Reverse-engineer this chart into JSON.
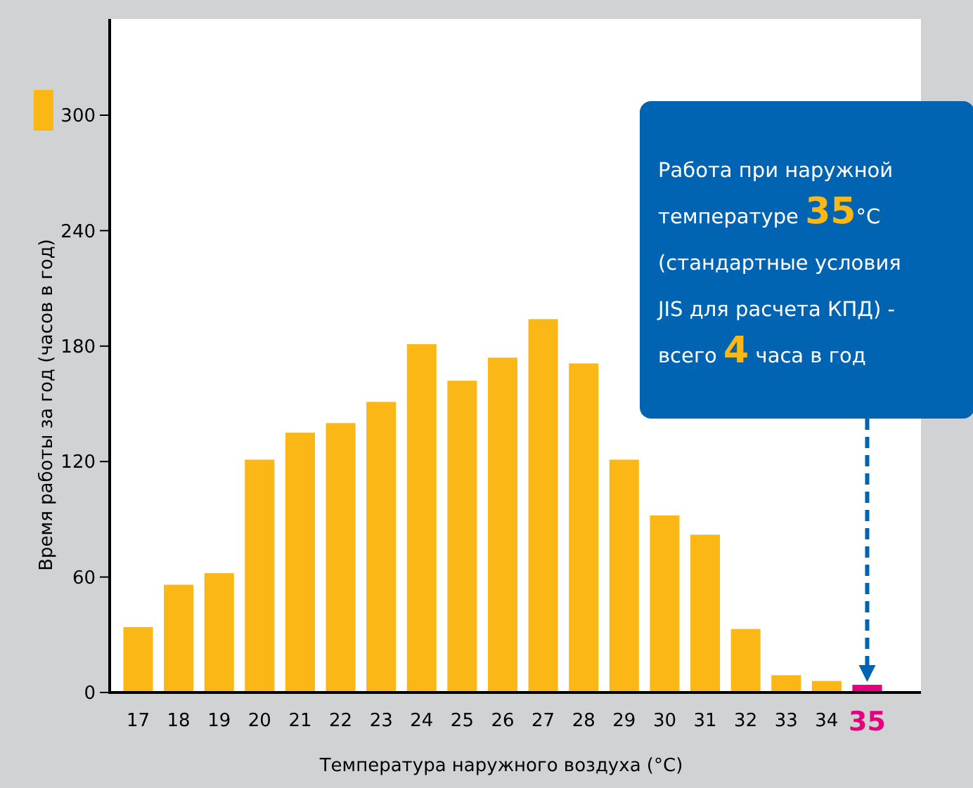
{
  "chart_data": {
    "type": "bar",
    "xlabel": "Температура наружного воздуха (°C)",
    "ylabel": "Время работы за год (часов в год)",
    "categories": [
      "17",
      "18",
      "19",
      "20",
      "21",
      "22",
      "23",
      "24",
      "25",
      "26",
      "27",
      "28",
      "29",
      "30",
      "31",
      "32",
      "33",
      "34",
      "35"
    ],
    "values": [
      34,
      56,
      62,
      121,
      135,
      140,
      151,
      181,
      162,
      174,
      194,
      171,
      121,
      92,
      82,
      33,
      9,
      6,
      4
    ],
    "colors": [
      "#fbb715",
      "#fbb715",
      "#fbb715",
      "#fbb715",
      "#fbb715",
      "#fbb715",
      "#fbb715",
      "#fbb715",
      "#fbb715",
      "#fbb715",
      "#fbb715",
      "#fbb715",
      "#fbb715",
      "#fbb715",
      "#fbb715",
      "#fbb715",
      "#fbb715",
      "#fbb715",
      "#e5007e"
    ],
    "ylim": [
      0,
      350
    ],
    "yticks": [
      0,
      60,
      120,
      180,
      240,
      300
    ],
    "grid": false,
    "annotations": [
      {
        "text": "Работа при наружной температуре 35°C (стандартные условия JIS для расчета КПД) - всего 4 часа в год"
      }
    ]
  }
}
